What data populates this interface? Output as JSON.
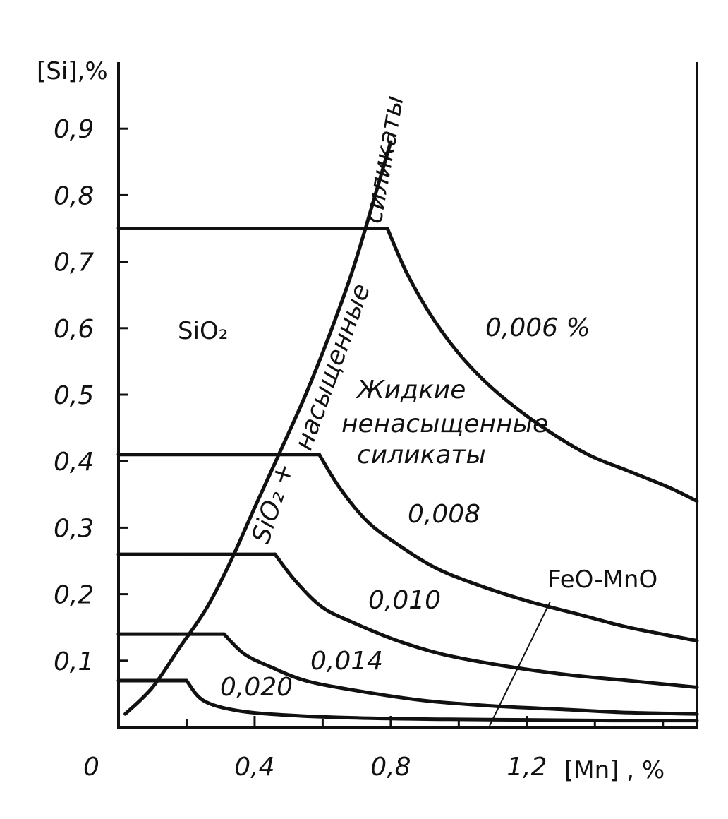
{
  "chart_data": {
    "type": "line",
    "ylabel": "[Si],%",
    "xlabel": "[Mn] , %",
    "origin_label": "0",
    "xlim": [
      0,
      1.7
    ],
    "ylim": [
      0,
      1.0
    ],
    "x_ticks": [
      {
        "value": 0.4,
        "label": "0,4"
      },
      {
        "value": 0.8,
        "label": "0,8"
      },
      {
        "value": 1.2,
        "label": "1,2"
      }
    ],
    "y_ticks": [
      {
        "value": 0.1,
        "label": "0,1"
      },
      {
        "value": 0.2,
        "label": "0,2"
      },
      {
        "value": 0.3,
        "label": "0,3"
      },
      {
        "value": 0.4,
        "label": "0,4"
      },
      {
        "value": 0.5,
        "label": "0,5"
      },
      {
        "value": 0.6,
        "label": "0,6"
      },
      {
        "value": 0.7,
        "label": "0,7"
      },
      {
        "value": 0.8,
        "label": "0,8"
      },
      {
        "value": 0.9,
        "label": "0,9"
      }
    ],
    "boundary": {
      "name_line1": "SiO₂ +",
      "name_line2": "насыщенные",
      "name_line3": "силикаты",
      "x": [
        0.02,
        0.1,
        0.18,
        0.26,
        0.33,
        0.4,
        0.48,
        0.55,
        0.62,
        0.69,
        0.76,
        0.8
      ],
      "y": [
        0.02,
        0.06,
        0.12,
        0.18,
        0.25,
        0.33,
        0.42,
        0.5,
        0.59,
        0.69,
        0.81,
        0.88
      ]
    },
    "series": [
      {
        "name": "0,020",
        "y_plateau": 0.07,
        "x": [
          0.2,
          0.25,
          0.35,
          0.5,
          0.7,
          0.95,
          1.2,
          1.45,
          1.7
        ],
        "y": [
          0.07,
          0.04,
          0.025,
          0.018,
          0.014,
          0.012,
          0.011,
          0.01,
          0.01
        ]
      },
      {
        "name": "0,014",
        "y_plateau": 0.14,
        "x": [
          0.31,
          0.37,
          0.45,
          0.55,
          0.7,
          0.9,
          1.1,
          1.3,
          1.5,
          1.7
        ],
        "y": [
          0.14,
          0.11,
          0.09,
          0.07,
          0.055,
          0.04,
          0.032,
          0.027,
          0.022,
          0.02
        ]
      },
      {
        "name": "0,010",
        "y_plateau": 0.26,
        "x": [
          0.46,
          0.52,
          0.6,
          0.7,
          0.82,
          0.95,
          1.1,
          1.3,
          1.5,
          1.7
        ],
        "y": [
          0.26,
          0.22,
          0.18,
          0.155,
          0.13,
          0.11,
          0.095,
          0.08,
          0.07,
          0.06
        ]
      },
      {
        "name": "0,008",
        "y_plateau": 0.41,
        "x": [
          0.59,
          0.65,
          0.73,
          0.82,
          0.93,
          1.05,
          1.2,
          1.35,
          1.5,
          1.7
        ],
        "y": [
          0.41,
          0.36,
          0.31,
          0.275,
          0.24,
          0.215,
          0.19,
          0.17,
          0.15,
          0.13
        ]
      },
      {
        "name": "0,006 %",
        "y_plateau": 0.75,
        "x": [
          0.79,
          0.85,
          0.93,
          1.02,
          1.12,
          1.25,
          1.38,
          1.5,
          1.62,
          1.7
        ],
        "y": [
          0.75,
          0.68,
          0.61,
          0.55,
          0.5,
          0.45,
          0.41,
          0.385,
          0.36,
          0.34
        ]
      }
    ],
    "regions": {
      "sio2": "SiO₂",
      "liquid_line1": "Жидкие",
      "liquid_line2": "ненасыщенные",
      "liquid_line3": "силикаты",
      "feo_mno": "FeO-MnO"
    },
    "grid": false
  }
}
